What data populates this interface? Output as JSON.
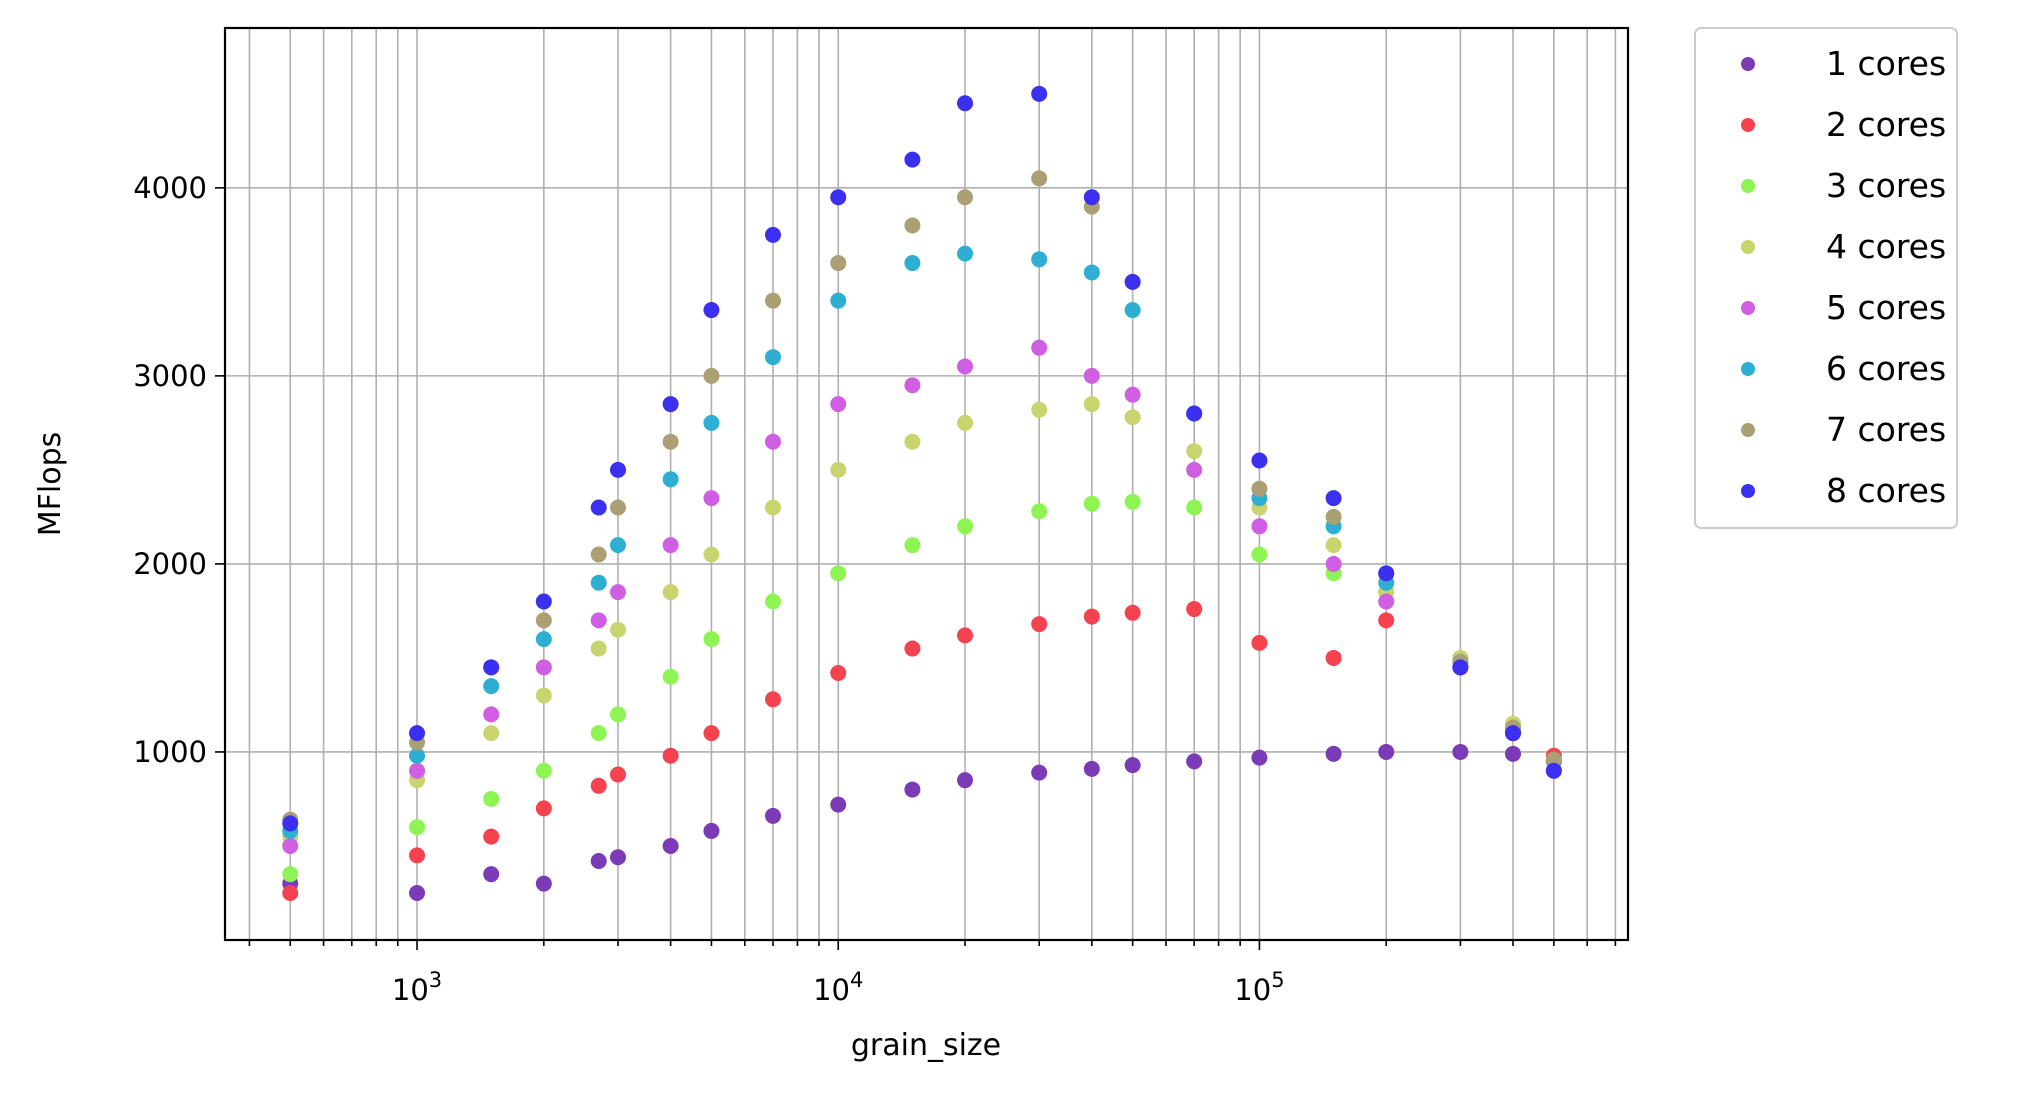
{
  "chart_data": {
    "type": "scatter",
    "title": "",
    "xlabel": "grain_size",
    "ylabel": "MFlops",
    "xscale": "log",
    "xlim": [
      350,
      750000
    ],
    "ylim": [
      0,
      4850
    ],
    "grid": true,
    "legend_position": "outside-top-right",
    "x_tick_labels": [
      {
        "value": 1000,
        "base": "10",
        "exp": "3"
      },
      {
        "value": 10000,
        "base": "10",
        "exp": "4"
      },
      {
        "value": 100000,
        "base": "10",
        "exp": "5"
      }
    ],
    "y_ticks": [
      1000,
      2000,
      3000,
      4000
    ],
    "y_tick_labels": [
      "1000",
      "2000",
      "3000",
      "4000"
    ],
    "x": [
      500,
      1000,
      1500,
      2000,
      2700,
      3000,
      4000,
      5000,
      7000,
      10000,
      15000,
      20000,
      30000,
      40000,
      50000,
      70000,
      100000,
      150000,
      200000,
      300000,
      400000,
      500000
    ],
    "series": [
      {
        "name": "1 cores",
        "color": "#7b3bb7",
        "values": [
          300,
          250,
          350,
          300,
          420,
          440,
          500,
          580,
          660,
          720,
          800,
          850,
          890,
          910,
          930,
          950,
          970,
          990,
          1000,
          1000,
          990,
          900
        ]
      },
      {
        "name": "2 cores",
        "color": "#f4434f",
        "values": [
          250,
          450,
          550,
          700,
          820,
          880,
          980,
          1100,
          1280,
          1420,
          1550,
          1620,
          1680,
          1720,
          1740,
          1760,
          1580,
          1500,
          1700,
          1450,
          1100,
          980
        ]
      },
      {
        "name": "3 cores",
        "color": "#8df453",
        "values": [
          350,
          600,
          750,
          900,
          1100,
          1200,
          1400,
          1600,
          1800,
          1950,
          2100,
          2200,
          2280,
          2320,
          2330,
          2300,
          2050,
          1950,
          1850,
          1500,
          1150,
          950
        ]
      },
      {
        "name": "4 cores",
        "color": "#c9d46e",
        "values": [
          550,
          850,
          1100,
          1300,
          1550,
          1650,
          1850,
          2050,
          2300,
          2500,
          2650,
          2750,
          2820,
          2850,
          2780,
          2600,
          2300,
          2100,
          1850,
          1500,
          1150,
          950
        ]
      },
      {
        "name": "5 cores",
        "color": "#d05ee3",
        "values": [
          500,
          900,
          1200,
          1450,
          1700,
          1850,
          2100,
          2350,
          2650,
          2850,
          2950,
          3050,
          3150,
          3000,
          2900,
          2500,
          2200,
          2000,
          1800,
          1450,
          1100,
          950
        ]
      },
      {
        "name": "6 cores",
        "color": "#2faed4",
        "values": [
          580,
          980,
          1350,
          1600,
          1900,
          2100,
          2450,
          2750,
          3100,
          3400,
          3600,
          3650,
          3620,
          3550,
          3350,
          2800,
          2350,
          2200,
          1900,
          1480,
          1120,
          950
        ]
      },
      {
        "name": "7 cores",
        "color": "#aba073",
        "values": [
          640,
          1050,
          1450,
          1700,
          2050,
          2300,
          2650,
          3000,
          3400,
          3600,
          3800,
          3950,
          4050,
          3900,
          3500,
          2800,
          2400,
          2250,
          1950,
          1480,
          1130,
          960
        ]
      },
      {
        "name": "8 cores",
        "color": "#3b2ff0",
        "values": [
          620,
          1100,
          1450,
          1800,
          2300,
          2500,
          2850,
          3350,
          3750,
          3950,
          4150,
          4450,
          4500,
          3950,
          3500,
          2800,
          2550,
          2350,
          1950,
          1450,
          1100,
          900
        ]
      }
    ]
  }
}
